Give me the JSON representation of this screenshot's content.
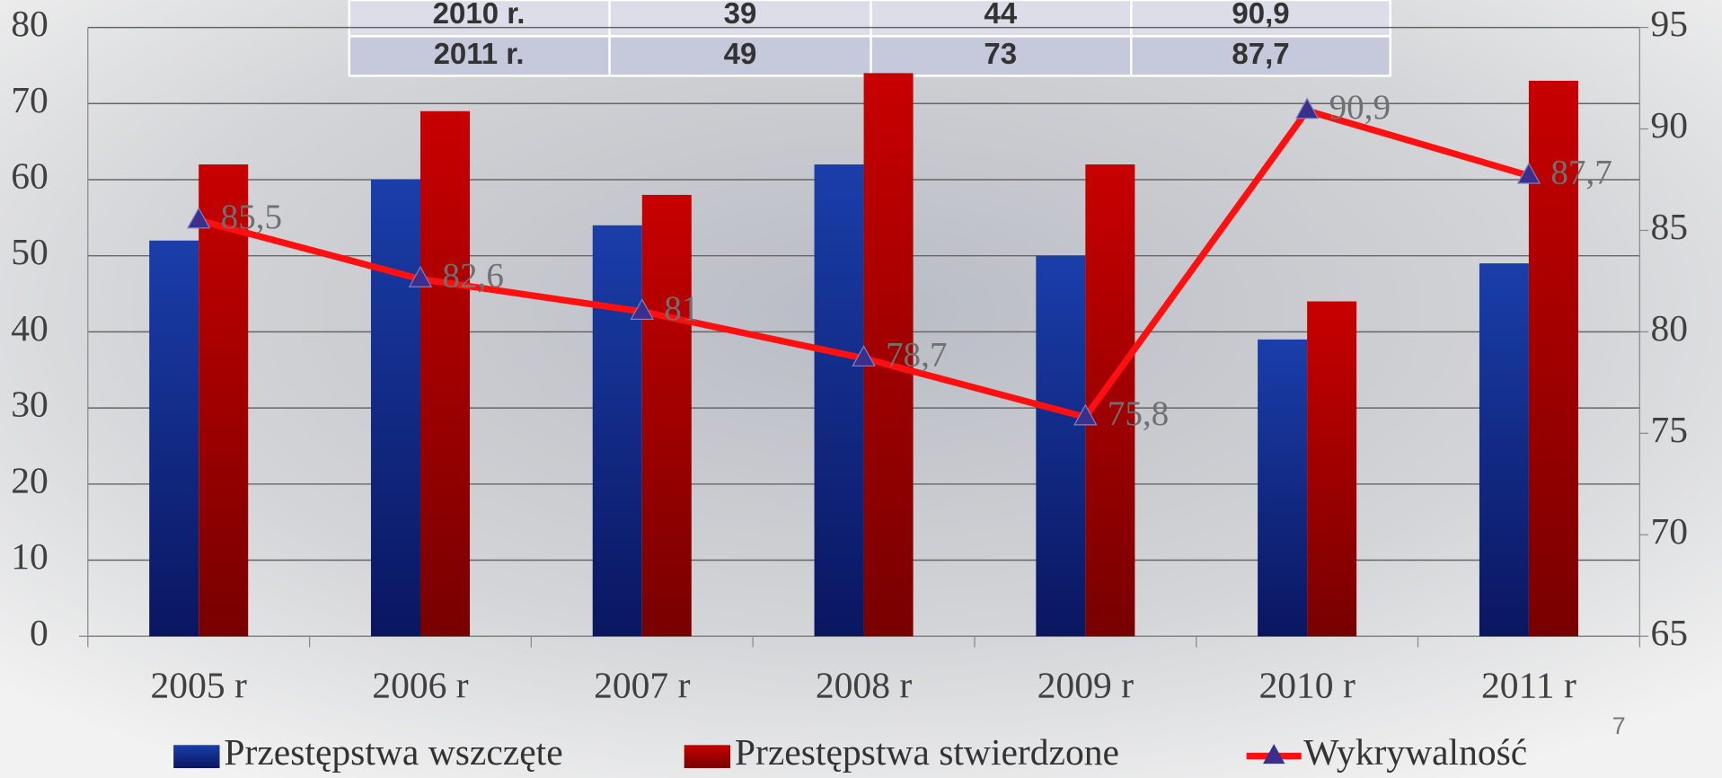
{
  "table": {
    "rows": [
      [
        "2010 r.",
        "39",
        "44",
        "90,9"
      ],
      [
        "2011 r.",
        "49",
        "73",
        "87,7"
      ]
    ]
  },
  "chart_data": {
    "type": "combo",
    "categories": [
      "2005 r",
      "2006 r",
      "2007 r",
      "2008 r",
      "2009 r",
      "2010 r",
      "2011 r"
    ],
    "series": [
      {
        "name": "Przestępstwa wszczęte",
        "type": "bar",
        "color": "#13309a",
        "values": [
          52,
          60,
          54,
          62,
          50,
          39,
          49
        ]
      },
      {
        "name": "Przestępstwa stwierdzone",
        "type": "bar",
        "color": "#b00000",
        "values": [
          62,
          69,
          58,
          74,
          62,
          44,
          73
        ]
      },
      {
        "name": "Wykrywalność",
        "type": "line",
        "axis": "y2",
        "color": "#ff1010",
        "marker_color": "#3a2f8c",
        "values": [
          85.5,
          82.6,
          81,
          78.7,
          75.8,
          90.9,
          87.7
        ],
        "value_labels": [
          "85,5",
          "82,6",
          "81",
          "78,7",
          "75,8",
          "90,9",
          "87,7"
        ]
      }
    ],
    "ylim": [
      0,
      80
    ],
    "yticks": [
      0,
      10,
      20,
      30,
      40,
      50,
      60,
      70,
      80
    ],
    "y2lim": [
      65,
      95
    ],
    "y2ticks": [
      65,
      70,
      75,
      80,
      85,
      90,
      95
    ],
    "grid": true
  },
  "page_number": "7"
}
